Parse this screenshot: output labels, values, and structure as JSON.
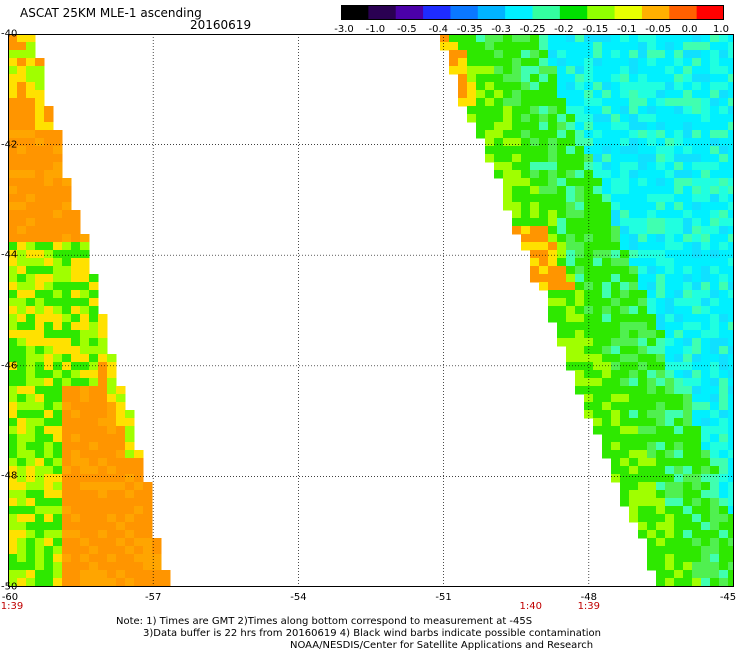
{
  "header": {
    "title": "ASCAT 25KM MLE-1 ascending",
    "date": "20160619"
  },
  "colorbar": {
    "labels": [
      "-3.0",
      "-1.0",
      "-0.5",
      "-0.4",
      "-0.35",
      "-0.3",
      "-0.25",
      "-0.2",
      "-0.15",
      "-0.1",
      "-0.05",
      "0.0",
      "1.0"
    ],
    "colors": [
      "#000000",
      "#2a0052",
      "#4b00a8",
      "#1e2cff",
      "#0a78ff",
      "#00b4ff",
      "#00f0ff",
      "#33ffa0",
      "#00e000",
      "#90ff00",
      "#e8ff00",
      "#ffb000",
      "#ff6000",
      "#ff0000"
    ]
  },
  "map": {
    "lat_labels": [
      "-40",
      "-42",
      "-44",
      "-46",
      "-48",
      "-50"
    ],
    "lon_labels": [
      "-60",
      "-57",
      "-54",
      "-51",
      "-48",
      "-45"
    ],
    "time_labels": [
      {
        "text": "1:39",
        "lon": -60
      },
      {
        "text": "1:40",
        "lon": -49.2
      },
      {
        "text": "1:39",
        "lon": -48
      }
    ],
    "region": {
      "lat_range": [
        -50,
        -40
      ],
      "lon_range": [
        -60,
        -45
      ]
    },
    "swaths": [
      {
        "name": "western swath",
        "dominant_values": "-0.05 to 0.0 (orange) with -0.1 to -0.2 (green/yellow) patches"
      },
      {
        "name": "eastern swath",
        "dominant_values": "-0.3 to -0.15 (cyan/green) with 0.0 (orange) near edge"
      }
    ]
  },
  "notes": {
    "line1": "Note: 1) Times are GMT 2)Times along bottom correspond to measurement at -45S",
    "line2": "3)Data buffer is 22 hrs from 20160619 4) Black wind barbs indicate possible contamination",
    "line3": "NOAA/NESDIS/Center for Satellite Applications and Research"
  }
}
